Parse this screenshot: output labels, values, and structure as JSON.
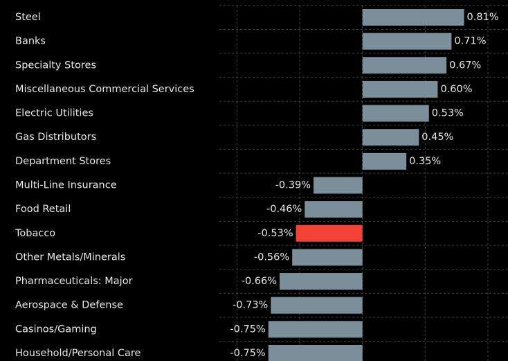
{
  "chart_data": {
    "type": "bar",
    "orientation": "horizontal",
    "categories": [
      "Steel",
      "Banks",
      "Specialty Stores",
      "Miscellaneous Commercial Services",
      "Electric Utilities",
      "Gas Distributors",
      "Department Stores",
      "Multi-Line Insurance",
      "Food Retail",
      "Tobacco",
      "Other Metals/Minerals",
      "Pharmaceuticals: Major",
      "Aerospace & Defense",
      "Casinos/Gaming",
      "Household/Personal Care"
    ],
    "values": [
      0.81,
      0.71,
      0.67,
      0.6,
      0.53,
      0.45,
      0.35,
      -0.39,
      -0.46,
      -0.53,
      -0.56,
      -0.66,
      -0.73,
      -0.75,
      -0.75
    ],
    "value_labels": [
      "0.81%",
      "0.71%",
      "0.67%",
      "0.60%",
      "0.53%",
      "0.45%",
      "0.35%",
      "-0.39%",
      "-0.46%",
      "-0.53%",
      "-0.56%",
      "-0.66%",
      "-0.73%",
      "-0.75%",
      "-0.75%"
    ],
    "colors": [
      "#7a8f99",
      "#7a8f99",
      "#7a8f99",
      "#7a8f99",
      "#7a8f99",
      "#7a8f99",
      "#7a8f99",
      "#7a8f99",
      "#7a8f99",
      "#f44336",
      "#7a8f99",
      "#7a8f99",
      "#7a8f99",
      "#7a8f99",
      "#7a8f99"
    ],
    "xlim": [
      -1.14,
      1.16
    ],
    "xticks": [
      -1,
      -0.5,
      0,
      0.5,
      1
    ],
    "grid": true
  }
}
